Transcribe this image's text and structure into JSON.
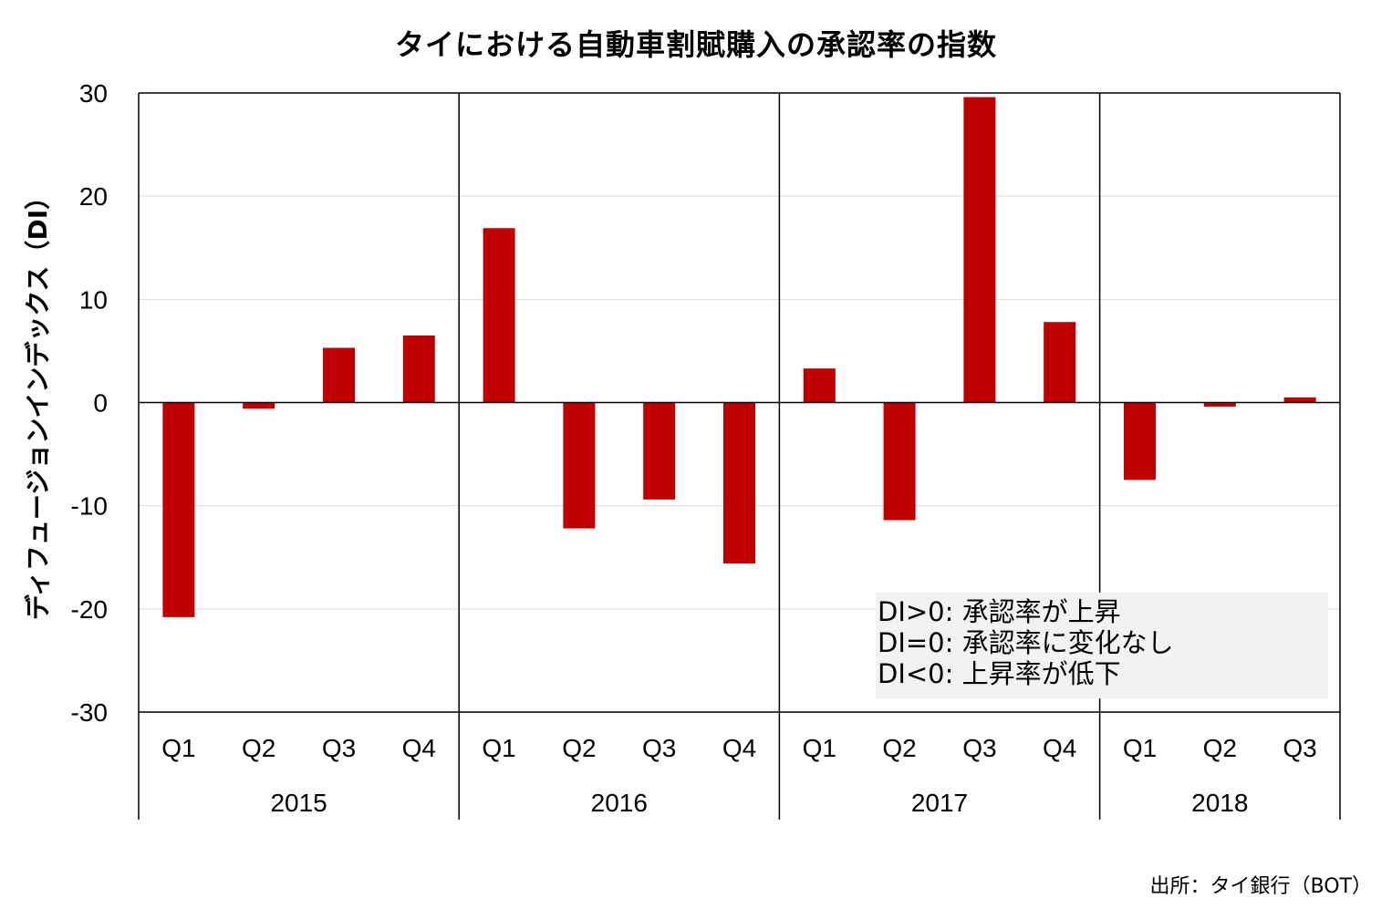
{
  "chart_data": {
    "type": "bar",
    "title": "タイにおける自動車割賦購入の承認率の指数",
    "ylabel": "ディフュージョンインデックス（DI）",
    "xlabel": "",
    "ylim": [
      -30,
      30
    ],
    "yticks": [
      30,
      20,
      10,
      0,
      -10,
      -20,
      -30
    ],
    "grid": true,
    "bar_color": "#c00000",
    "groups": [
      {
        "label": "2015",
        "quarters": [
          "Q1",
          "Q2",
          "Q3",
          "Q4"
        ],
        "values": [
          -20.8,
          -0.6,
          5.3,
          6.5
        ]
      },
      {
        "label": "2016",
        "quarters": [
          "Q1",
          "Q2",
          "Q3",
          "Q4"
        ],
        "values": [
          16.9,
          -12.2,
          -9.4,
          -15.6
        ]
      },
      {
        "label": "2017",
        "quarters": [
          "Q1",
          "Q2",
          "Q3",
          "Q4"
        ],
        "values": [
          3.3,
          -11.4,
          29.6,
          7.8
        ]
      },
      {
        "label": "2018",
        "quarters": [
          "Q1",
          "Q2",
          "Q3"
        ],
        "values": [
          -7.5,
          -0.4,
          0.5
        ]
      }
    ],
    "annotation": [
      "DI>0: 承認率が上昇",
      "DI=0: 承認率に変化なし",
      "DI<0: 上昇率が低下"
    ],
    "source": "出所：タイ銀行（BOT）"
  }
}
